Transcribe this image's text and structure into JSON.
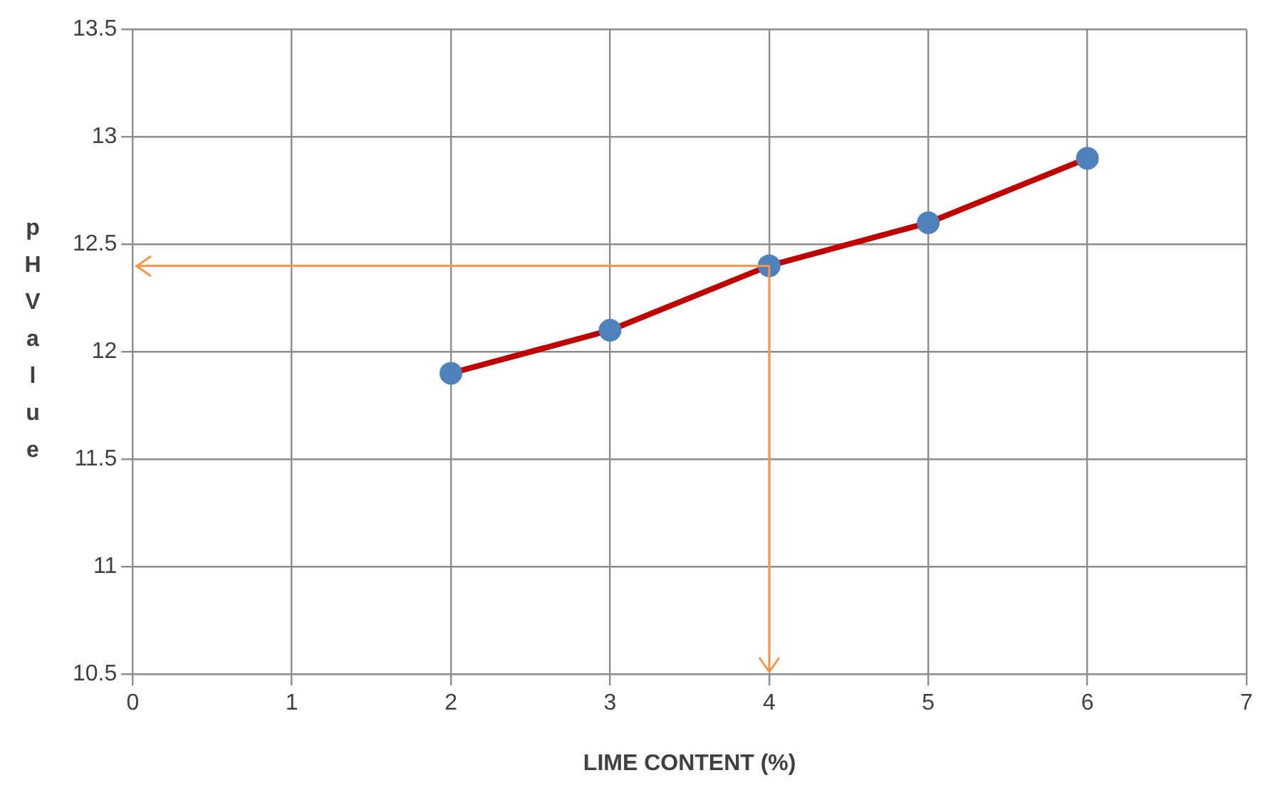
{
  "chart_data": {
    "type": "line",
    "xlabel": "LIME CONTENT (%)",
    "ylabel": "pH Value",
    "x": [
      2,
      3,
      4,
      5,
      6
    ],
    "series": [
      {
        "color": "#c00000",
        "colors": [
          "#4f81bd",
          "#4f81bd",
          "#4f81bd",
          "#4f81bd",
          "#4f81bd"
        ],
        "values": [
          11.9,
          12.1,
          12.4,
          12.6,
          12.9
        ]
      }
    ],
    "xlim": [
      0,
      7
    ],
    "xticks": [
      0,
      1,
      2,
      3,
      4,
      5,
      6,
      7
    ],
    "ylim": [
      10.5,
      13.5
    ],
    "yticks": [
      10.5,
      11,
      11.5,
      12,
      12.5,
      13,
      13.5
    ],
    "ref_lines": [
      {
        "axis": "y",
        "value": 12.4,
        "color": "#f79646"
      },
      {
        "axis": "x",
        "value": 4,
        "color": "#f79646"
      }
    ],
    "grid": true,
    "marker": "circle",
    "line_style": "solid",
    "legend": false
  }
}
